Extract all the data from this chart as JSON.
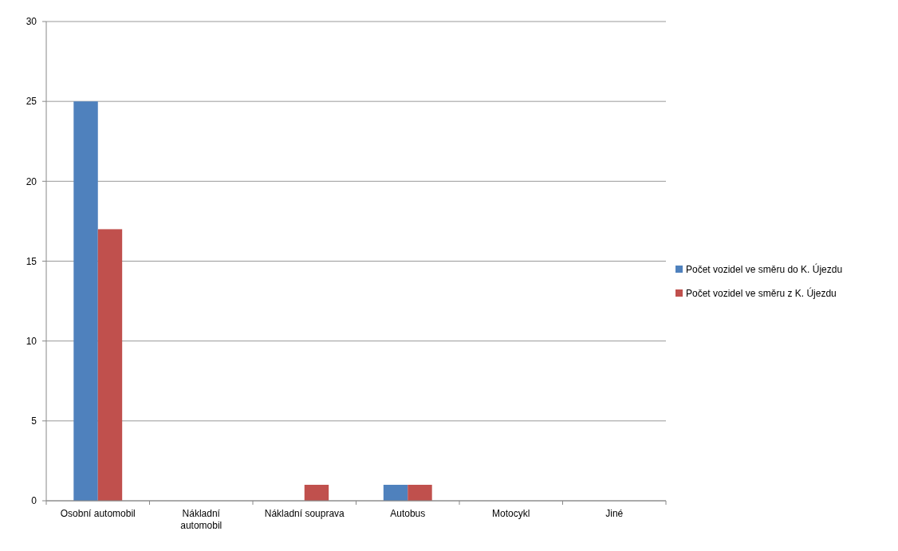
{
  "chart_data": {
    "type": "bar",
    "categories": [
      "Osobní automobil",
      "Nákladní automobil",
      "Nákladní souprava",
      "Autobus",
      "Motocykl",
      "Jiné"
    ],
    "series": [
      {
        "name": "Počet vozidel ve směru  do K. Újezdu",
        "color": "#4f81bd",
        "values": [
          25,
          0,
          0,
          1,
          0,
          0
        ]
      },
      {
        "name": "Počet vozidel ve směru  z K. Újezdu",
        "color": "#c0504d",
        "values": [
          17,
          0,
          1,
          1,
          0,
          0
        ]
      }
    ],
    "ylim": [
      0,
      30
    ],
    "yticks": [
      0,
      5,
      10,
      15,
      20,
      25,
      30
    ],
    "grid": "y",
    "legend": "right"
  }
}
